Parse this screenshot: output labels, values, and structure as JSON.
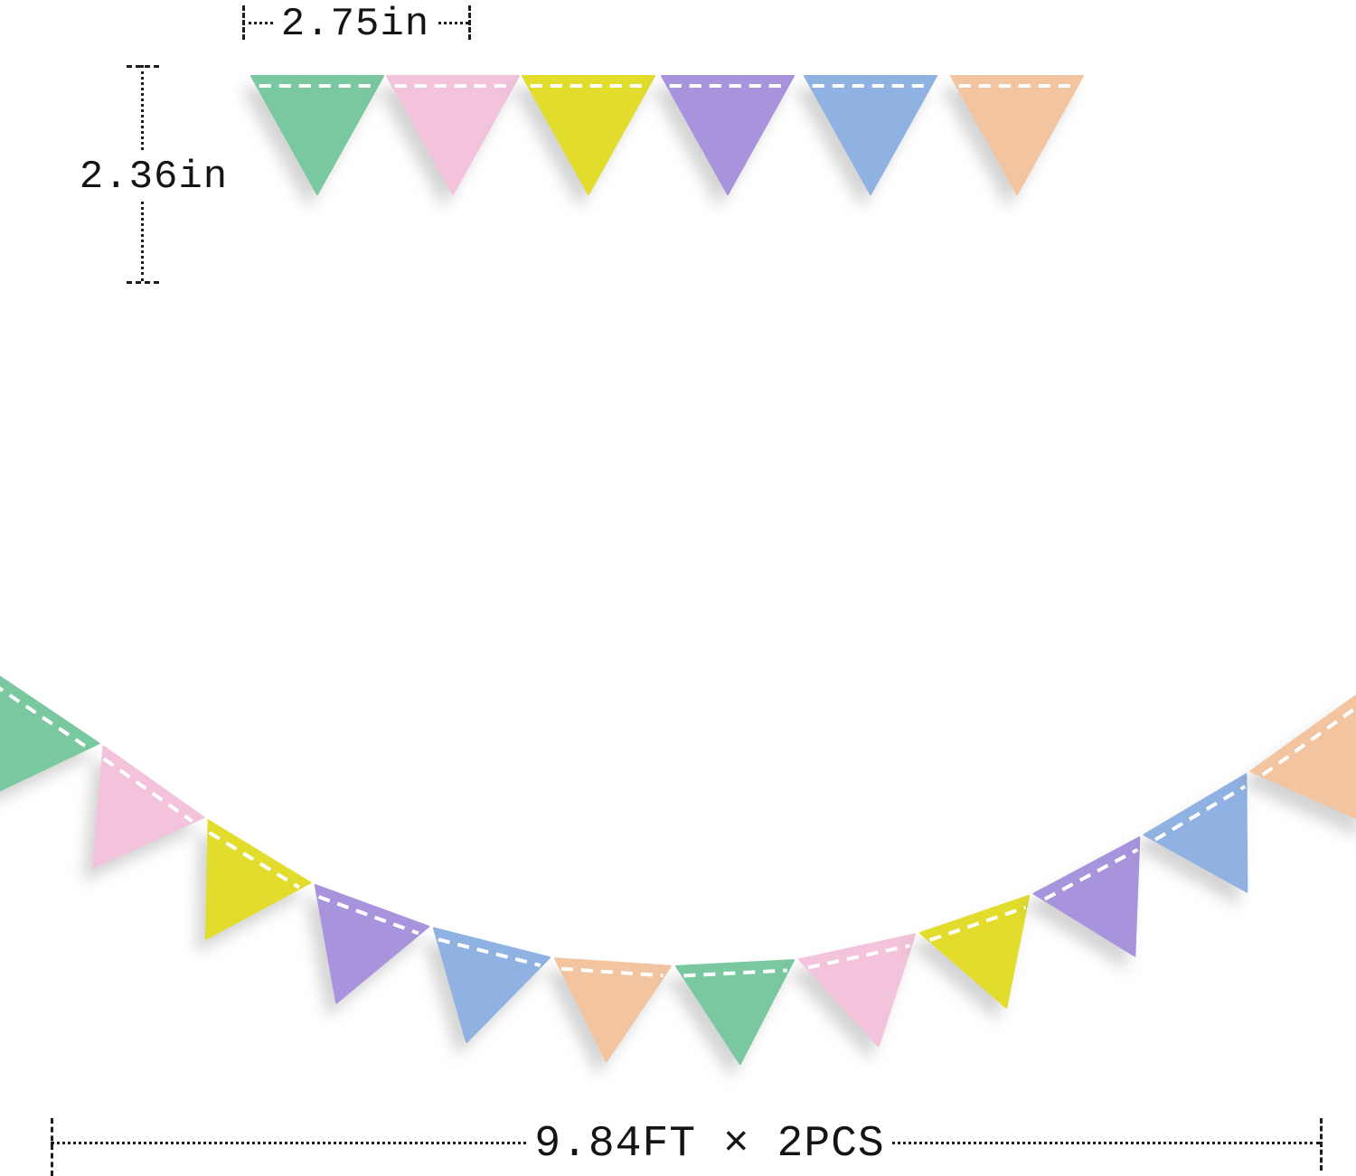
{
  "page": {
    "background": "#ffffff",
    "description": "pastel-pennant-banner-dimension-diagram"
  },
  "banner": {
    "palette": {
      "green": "#79c8a0",
      "pink": "#f2c3da",
      "yellow": "#e2dd2d",
      "purple": "#a893dd",
      "blue": "#8fb2e2",
      "peach": "#f2c4a0"
    },
    "stitch_color": "#ffffff",
    "top_row_sequence": [
      "green",
      "pink",
      "yellow",
      "purple",
      "blue",
      "peach"
    ],
    "garland_sequence": [
      "green",
      "pink",
      "yellow",
      "purple",
      "blue",
      "peach",
      "green",
      "pink",
      "yellow",
      "purple",
      "blue",
      "peach"
    ]
  },
  "dimensions": {
    "flag_width": {
      "label": "2.75in"
    },
    "flag_height": {
      "label": "2.36in"
    },
    "total_length": {
      "label": "9.84FT × 2PCS"
    }
  }
}
